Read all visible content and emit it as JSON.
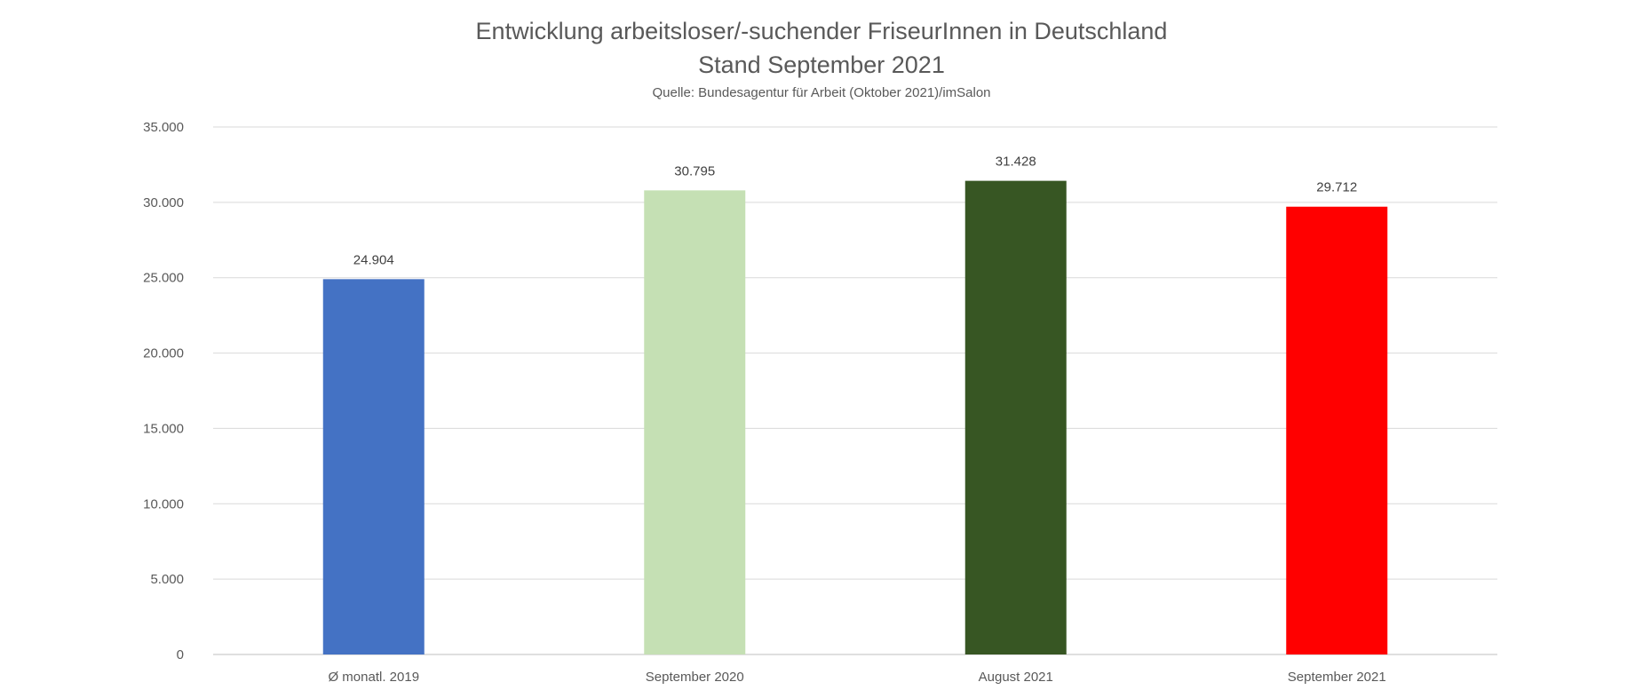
{
  "chart_data": {
    "type": "bar",
    "title": "Entwicklung arbeitsloser/-suchender FriseurInnen in Deutschland",
    "title_line2": "Stand September 2021",
    "subtitle": "Quelle: Bundesagentur für Arbeit (Oktober 2021)/imSalon",
    "categories": [
      "Ø monatl. 2019",
      "September 2020",
      "August 2021",
      "September 2021"
    ],
    "values": [
      24904,
      30795,
      31428,
      29712
    ],
    "value_labels": [
      "24.904",
      "30.795",
      "31.428",
      "29.712"
    ],
    "bar_colors": [
      "#4472C4",
      "#C5E0B4",
      "#375623",
      "#FF0000"
    ],
    "ylim": [
      0,
      35000
    ],
    "yticks": [
      0,
      5000,
      10000,
      15000,
      20000,
      25000,
      30000,
      35000
    ],
    "ytick_labels": [
      "0",
      "5.000",
      "10.000",
      "15.000",
      "20.000",
      "25.000",
      "30.000",
      "35.000"
    ],
    "xlabel": "",
    "ylabel": "",
    "grid": true,
    "legend": "none"
  }
}
